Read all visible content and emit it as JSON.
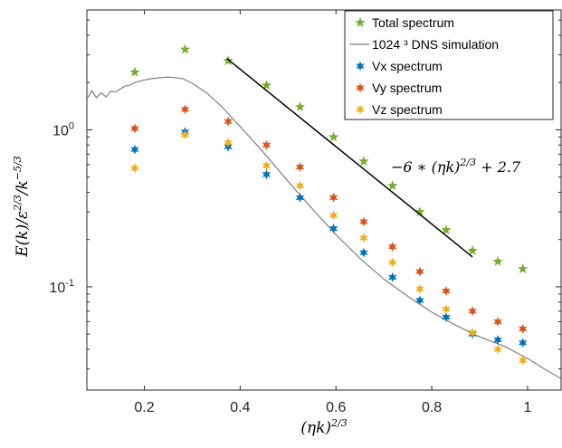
{
  "chart_data": {
    "type": "scatter",
    "xlabel": "(ηk)",
    "xlabel_sup": "2/3",
    "ylabel": "E(k)/ε",
    "ylabel_sup1": "2/3",
    "ylabel_mid": "/k",
    "ylabel_sup2": "−5/3",
    "xlim": [
      0.08,
      1.07
    ],
    "ylim": [
      0.022,
      5.8
    ],
    "yscale": "log",
    "grid": false,
    "legend_position": "top-right",
    "x_ticks": [
      {
        "value": 0.2,
        "label": "0.2"
      },
      {
        "value": 0.4,
        "label": "0.4"
      },
      {
        "value": 0.6,
        "label": "0.6"
      },
      {
        "value": 0.8,
        "label": "0.8"
      },
      {
        "value": 1.0,
        "label": "1"
      }
    ],
    "y_ticks": [
      {
        "value": 1,
        "base": "10",
        "exp": "0"
      },
      {
        "value": 0.1,
        "base": "10",
        "exp": "-1"
      }
    ],
    "series": [
      {
        "name": "Total spectrum",
        "marker": "star5",
        "color": "#77AC30",
        "x": [
          0.18,
          0.285,
          0.375,
          0.455,
          0.525,
          0.595,
          0.658,
          0.718,
          0.775,
          0.83,
          0.885,
          0.938,
          0.99
        ],
        "y": [
          2.33,
          3.25,
          2.75,
          1.92,
          1.4,
          0.9,
          0.63,
          0.44,
          0.3,
          0.23,
          0.17,
          0.145,
          0.13
        ]
      },
      {
        "name": "1024 ³ DNS simulation",
        "marker": "line",
        "color": "#808080",
        "x": [
          0.082,
          0.09,
          0.1,
          0.11,
          0.12,
          0.13,
          0.14,
          0.15,
          0.16,
          0.17,
          0.18,
          0.2,
          0.22,
          0.25,
          0.28,
          0.3,
          0.33,
          0.36,
          0.4,
          0.45,
          0.5,
          0.55,
          0.6,
          0.65,
          0.7,
          0.75,
          0.8,
          0.85,
          0.9,
          0.95,
          1.0,
          1.035,
          1.07
        ],
        "y": [
          1.6,
          1.78,
          1.6,
          1.72,
          1.62,
          1.76,
          1.74,
          1.82,
          1.9,
          1.93,
          2.0,
          2.08,
          2.13,
          2.17,
          2.12,
          1.98,
          1.72,
          1.42,
          1.05,
          0.71,
          0.47,
          0.315,
          0.215,
          0.152,
          0.112,
          0.087,
          0.069,
          0.057,
          0.048,
          0.042,
          0.035,
          0.03,
          0.026
        ]
      },
      {
        "name": "Vx spectrum",
        "marker": "star6",
        "color": "#0072BD",
        "x": [
          0.18,
          0.285,
          0.375,
          0.455,
          0.525,
          0.595,
          0.658,
          0.718,
          0.775,
          0.83,
          0.885,
          0.938,
          0.99
        ],
        "y": [
          0.75,
          0.97,
          0.78,
          0.52,
          0.37,
          0.235,
          0.165,
          0.115,
          0.082,
          0.064,
          0.05,
          0.046,
          0.044
        ]
      },
      {
        "name": "Vy spectrum",
        "marker": "star6",
        "color": "#D95319",
        "x": [
          0.18,
          0.285,
          0.375,
          0.455,
          0.525,
          0.595,
          0.658,
          0.718,
          0.775,
          0.83,
          0.885,
          0.938,
          0.99
        ],
        "y": [
          1.02,
          1.35,
          1.13,
          0.8,
          0.58,
          0.37,
          0.26,
          0.18,
          0.125,
          0.094,
          0.07,
          0.06,
          0.054
        ]
      },
      {
        "name": "Vz spectrum",
        "marker": "star6",
        "color": "#EDB120",
        "x": [
          0.18,
          0.285,
          0.375,
          0.455,
          0.525,
          0.595,
          0.658,
          0.718,
          0.775,
          0.83,
          0.885,
          0.938,
          0.99
        ],
        "y": [
          0.57,
          0.93,
          0.83,
          0.59,
          0.44,
          0.285,
          0.205,
          0.143,
          0.097,
          0.072,
          0.051,
          0.04,
          0.034
        ]
      }
    ],
    "fit_line": {
      "x": [
        0.372,
        0.885
      ],
      "y": [
        2.85,
        0.155
      ],
      "color": "#000000",
      "label": "−6 ∗ (ηk)",
      "label_sup": "2/3",
      "label_tail": " + 2.7"
    }
  }
}
